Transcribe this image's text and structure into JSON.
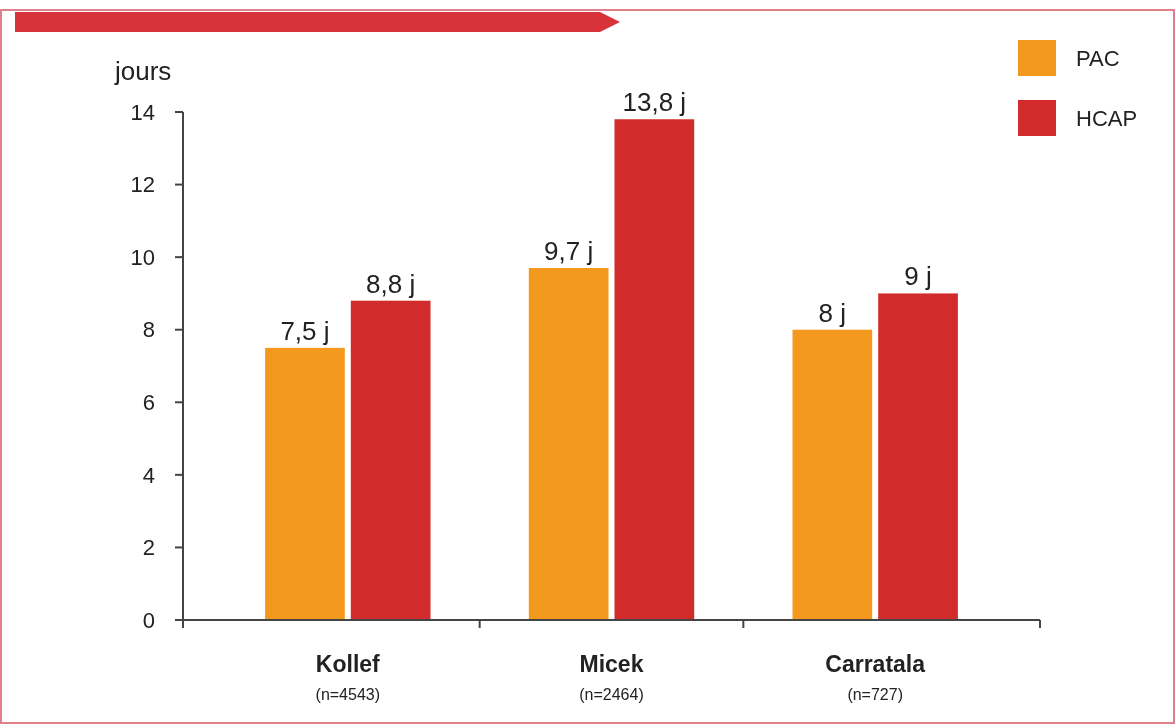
{
  "chart_data": {
    "type": "bar",
    "ylabel": "jours",
    "categories": [
      "Kollef\n(n=4543)",
      "Micek\n(n=2464)",
      "Carratala\n(n=727)"
    ],
    "series": [
      {
        "name": "PAC",
        "color": "#f39a1e",
        "values": [
          7.5,
          9.7,
          8
        ],
        "value_labels": [
          "7,5 j",
          "9,7 j",
          "8 j"
        ]
      },
      {
        "name": "HCAP",
        "color": "#d22b2b",
        "values": [
          8.8,
          13.8,
          9
        ],
        "value_labels": [
          "8,8 j",
          "13,8 j",
          "9 j"
        ]
      }
    ],
    "ylim": [
      0,
      14
    ],
    "yticks": [
      0,
      2,
      4,
      6,
      8,
      10,
      12,
      14
    ],
    "grid": false,
    "legend": "top right"
  }
}
